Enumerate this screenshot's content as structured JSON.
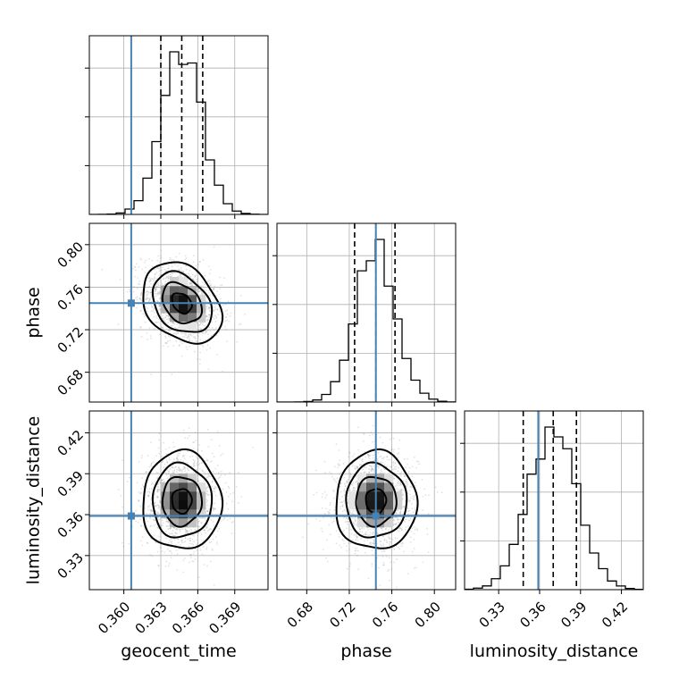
{
  "chart_data": {
    "type": "corner",
    "parameters": [
      {
        "name": "geocent_time",
        "label": "geocent_time",
        "range": [
          0.3572,
          0.3717
        ],
        "ticks": [
          0.36,
          0.363,
          0.366,
          0.369
        ],
        "tick_labels": [
          "0.360",
          "0.363",
          "0.366",
          "0.369"
        ],
        "truth": 0.3606,
        "quantiles": [
          0.363,
          0.3647,
          0.3664
        ],
        "mean": 0.3647,
        "sd": 0.0016
      },
      {
        "name": "phase",
        "label": "phase",
        "range": [
          0.652,
          0.82
        ],
        "ticks": [
          0.68,
          0.72,
          0.76,
          0.8
        ],
        "tick_labels": [
          "0.68",
          "0.72",
          "0.76",
          "0.80"
        ],
        "truth": 0.745,
        "quantiles": [
          0.725,
          0.745,
          0.763
        ],
        "mean": 0.745,
        "sd": 0.019
      },
      {
        "name": "luminosity_distance",
        "label": "luminosity_distance",
        "range": [
          0.305,
          0.436
        ],
        "ticks": [
          0.33,
          0.36,
          0.39,
          0.42
        ],
        "tick_labels": [
          "0.33",
          "0.36",
          "0.39",
          "0.42"
        ],
        "truth": 0.359,
        "quantiles": [
          0.348,
          0.37,
          0.387
        ],
        "mean": 0.37,
        "sd": 0.018
      }
    ],
    "correlations": [
      {
        "x": "geocent_time",
        "y": "phase",
        "rho": -0.3
      },
      {
        "x": "geocent_time",
        "y": "luminosity_distance",
        "rho": 0.0
      },
      {
        "x": "phase",
        "y": "luminosity_distance",
        "rho": 0.0
      }
    ],
    "grid": true,
    "colors": {
      "truth": "#4682b4",
      "hist": "#000000",
      "points": "#7a7a7a"
    }
  }
}
